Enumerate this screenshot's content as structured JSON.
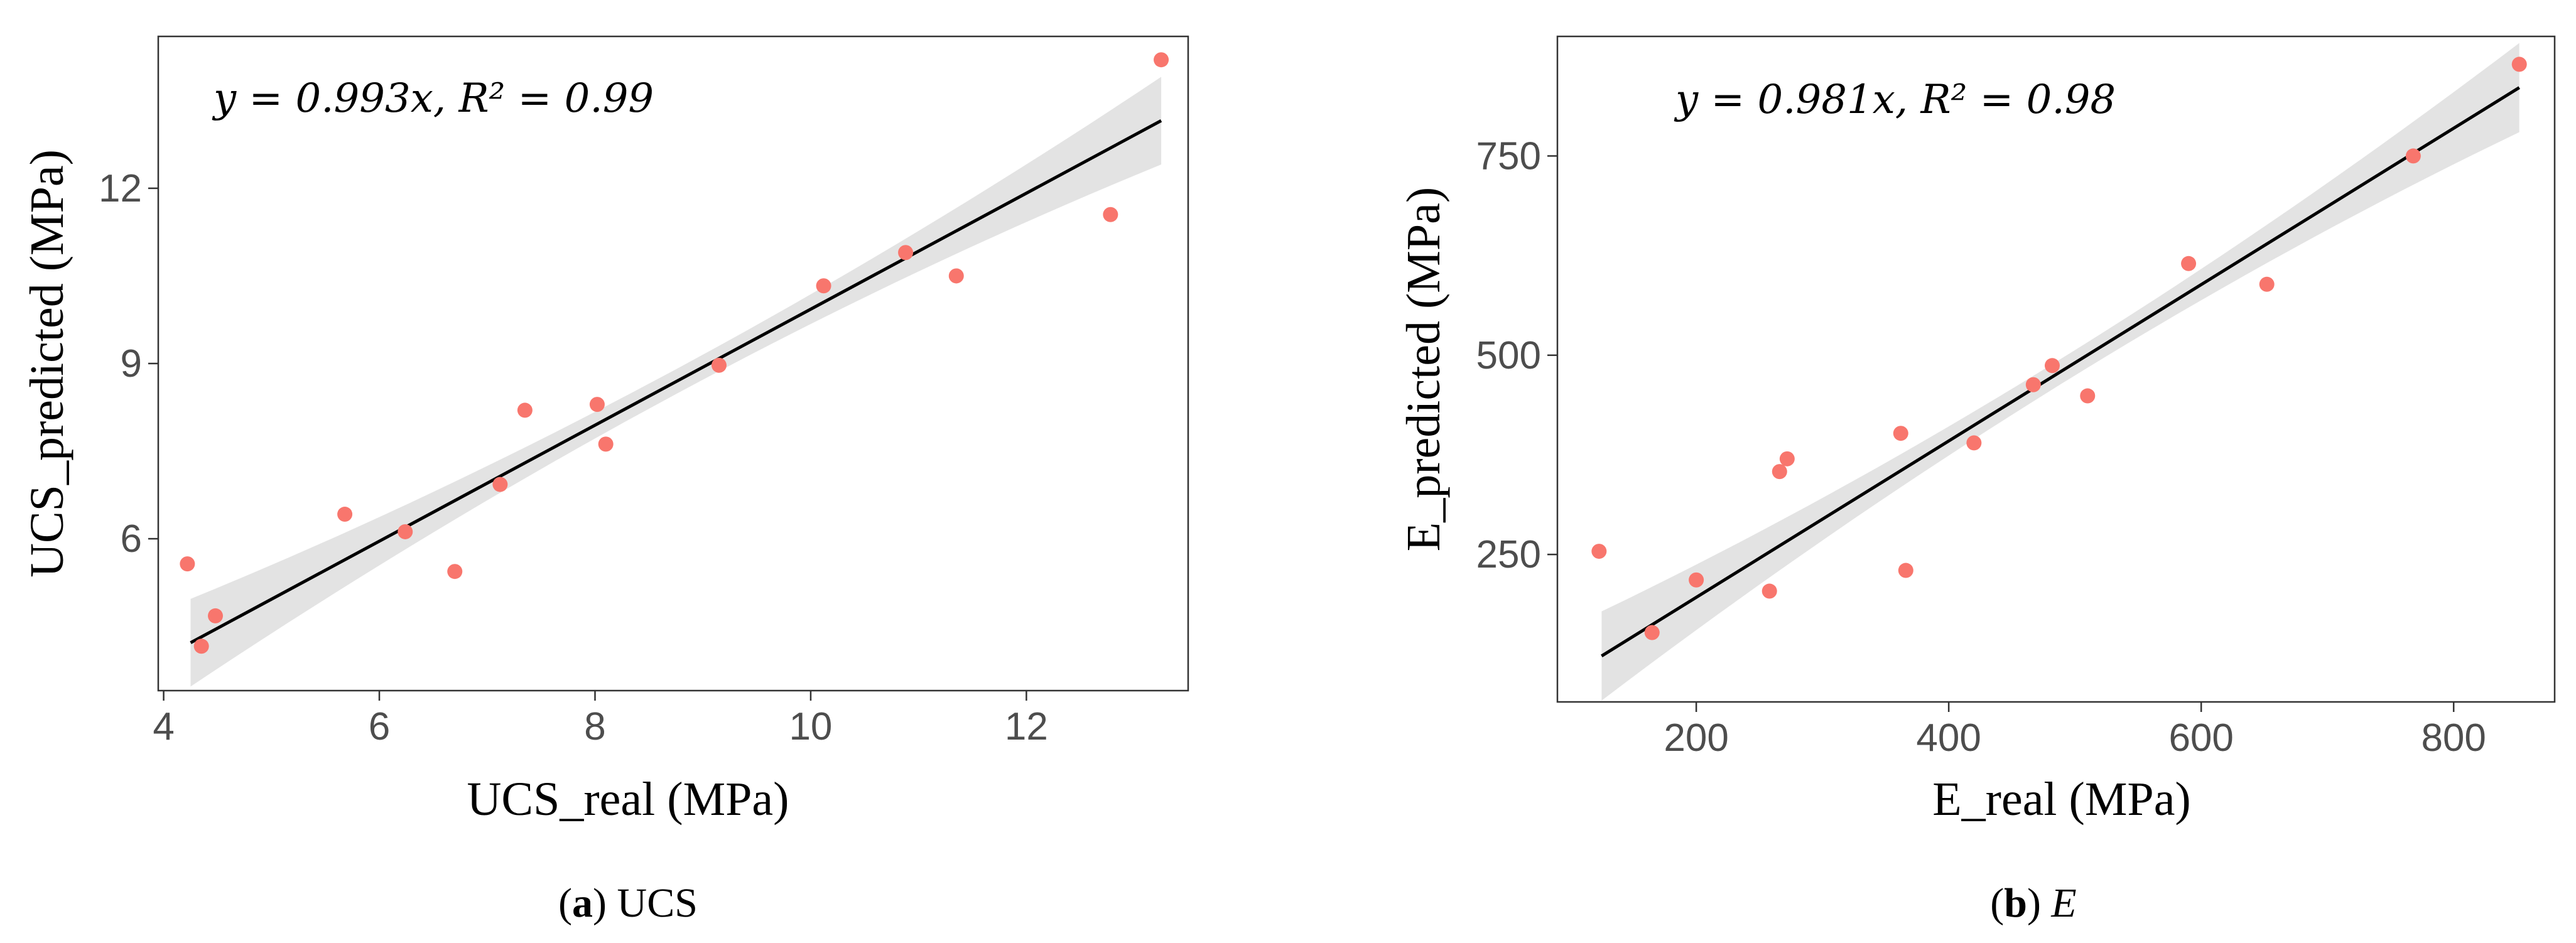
{
  "chart_data": [
    {
      "type": "scatter",
      "caption": {
        "label": "a",
        "text": "UCS"
      },
      "equation": "y = 0.993x, R² = 0.99",
      "xlabel": "UCS_real (MPa)",
      "ylabel": "UCS_predicted (MPa)",
      "xlim": [
        3.95,
        13.5
      ],
      "ylim": [
        3.4,
        14.6
      ],
      "xticks": [
        4,
        6,
        8,
        10,
        12
      ],
      "yticks": [
        6,
        9,
        12
      ],
      "grid": false,
      "fit": {
        "slope": 0.993,
        "x_range": [
          4.25,
          13.25
        ]
      },
      "x": [
        4.22,
        4.35,
        4.48,
        5.68,
        6.24,
        6.7,
        7.12,
        7.35,
        8.02,
        8.1,
        9.15,
        10.12,
        10.88,
        11.35,
        12.78,
        13.25
      ],
      "y": [
        5.57,
        4.16,
        4.68,
        6.42,
        6.12,
        5.44,
        6.93,
        8.2,
        8.3,
        7.62,
        8.97,
        10.33,
        10.9,
        10.5,
        11.55,
        14.2
      ],
      "colors": {
        "points": "#f8766d",
        "line": "#000000",
        "band": "#d9d9d9"
      }
    },
    {
      "type": "scatter",
      "caption": {
        "label": "b",
        "text": "E"
      },
      "equation": "y = 0.981x, R² = 0.98",
      "xlabel": "E_real (MPa)",
      "ylabel": "E_predicted (MPa)",
      "xlim": [
        90,
        880
      ],
      "ylim": [
        65,
        900
      ],
      "xticks": [
        200,
        400,
        600,
        800
      ],
      "yticks": [
        250,
        500,
        750
      ],
      "grid": false,
      "fit": {
        "slope": 0.981,
        "x_range": [
          125,
          852
        ]
      },
      "x": [
        123,
        165,
        200,
        258,
        266,
        272,
        362,
        366,
        420,
        467,
        482,
        510,
        590,
        652,
        768,
        852
      ],
      "y": [
        254,
        152,
        218,
        204,
        354,
        370,
        402,
        230,
        390,
        463,
        487,
        449,
        615,
        589,
        750,
        865
      ],
      "colors": {
        "points": "#f8766d",
        "line": "#000000",
        "band": "#d9d9d9"
      }
    }
  ]
}
